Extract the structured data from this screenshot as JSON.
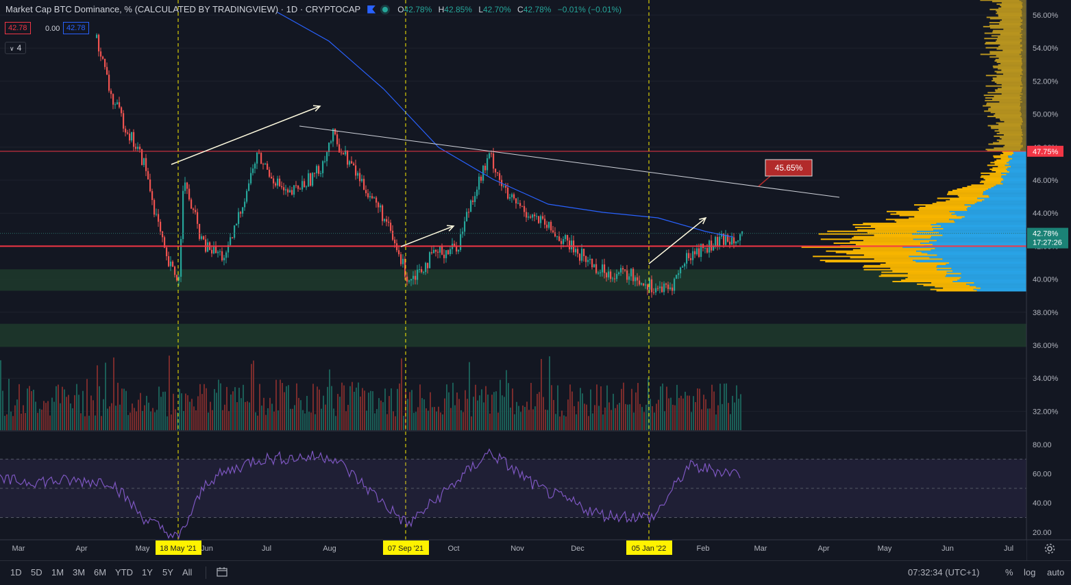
{
  "header": {
    "title": "Market Cap BTC Dominance, % (CALCULATED BY TRADINGVIEW) · 1D · CRYPTOCAP",
    "ohlc": {
      "o_label": "O",
      "o": "42.78%",
      "h_label": "H",
      "h": "42.85%",
      "l_label": "L",
      "l": "42.70%",
      "c_label": "C",
      "c": "42.78%",
      "change": "−0.01% (−0.01%)"
    },
    "box_red": "42.78",
    "box_plain": "0.00",
    "box_blue": "42.78",
    "indicator_count": "4"
  },
  "colors": {
    "bg": "#131722",
    "grid": "#1e222d",
    "up": "#26a69a",
    "down": "#ef5350",
    "ma": "#2962ff",
    "rsi": "#7e57c2",
    "vp_up": "#f7b500",
    "vp_down": "#29a3e6",
    "zone": "#1f3a2b",
    "hline": "#f23645",
    "date_label": "#fff200"
  },
  "price_axis": {
    "ticks": [
      "56.00%",
      "54.00%",
      "52.00%",
      "50.00%",
      "48.00%",
      "46.00%",
      "44.00%",
      "42.00%",
      "40.00%",
      "38.00%",
      "36.00%",
      "34.00%",
      "32.00%"
    ],
    "last_price": "42.78%",
    "countdown": "17:27:26",
    "level_label": "47.75%"
  },
  "rsi_axis": {
    "ticks": [
      "80.00",
      "60.00",
      "40.00",
      "20.00"
    ]
  },
  "time_axis": {
    "months": [
      "Mar",
      "Apr",
      "May",
      "Jun",
      "Jul",
      "Aug",
      "Oct",
      "Nov",
      "Dec",
      "Feb",
      "Mar",
      "Apr",
      "May",
      "Jun",
      "Jul"
    ],
    "markers": [
      "18 May '21",
      "07 Sep '21",
      "05 Jan '22"
    ]
  },
  "annotation": {
    "callout": "45.65%"
  },
  "bottom": {
    "ranges": [
      "1D",
      "5D",
      "1M",
      "3M",
      "6M",
      "YTD",
      "1Y",
      "5Y",
      "All"
    ],
    "time": "07:32:34 (UTC+1)",
    "opts": [
      "%",
      "log",
      "auto"
    ]
  },
  "chart_data": {
    "type": "candlestick",
    "symbol": "CRYPTOCAP",
    "interval": "1D",
    "ylim": [
      30.6,
      57.1
    ],
    "price_path": [
      [
        "2021-04-01",
        58.0
      ],
      [
        "2021-04-15",
        51.0
      ],
      [
        "2021-05-01",
        47.0
      ],
      [
        "2021-05-12",
        41.0
      ],
      [
        "2021-05-18",
        40.0
      ],
      [
        "2021-05-20",
        46.0
      ],
      [
        "2021-05-30",
        42.0
      ],
      [
        "2021-06-10",
        41.3
      ],
      [
        "2021-06-25",
        47.5
      ],
      [
        "2021-07-10",
        45.0
      ],
      [
        "2021-07-25",
        46.5
      ],
      [
        "2021-08-01",
        48.7
      ],
      [
        "2021-08-12",
        46.5
      ],
      [
        "2021-08-25",
        44.0
      ],
      [
        "2021-09-07",
        40.0
      ],
      [
        "2021-09-20",
        41.5
      ],
      [
        "2021-10-01",
        42.0
      ],
      [
        "2021-10-08",
        45.0
      ],
      [
        "2021-10-17",
        47.5
      ],
      [
        "2021-10-25",
        45.0
      ],
      [
        "2021-11-10",
        43.5
      ],
      [
        "2021-11-25",
        42.0
      ],
      [
        "2021-12-10",
        40.5
      ],
      [
        "2021-12-25",
        40.2
      ],
      [
        "2022-01-05",
        39.5
      ],
      [
        "2022-01-12",
        39.3
      ],
      [
        "2022-01-22",
        41.5
      ],
      [
        "2022-02-01",
        42.0
      ],
      [
        "2022-02-10",
        42.5
      ],
      [
        "2022-02-17",
        42.78
      ]
    ],
    "levels": [
      {
        "price": 47.75,
        "type": "horizontal"
      },
      {
        "price": 42.0,
        "type": "horizontal"
      }
    ],
    "zones": [
      {
        "from": 39.3,
        "to": 40.6
      },
      {
        "from": 35.9,
        "to": 37.3
      }
    ],
    "rsi": {
      "ylim": [
        15,
        85
      ],
      "bands": [
        30,
        50,
        70
      ],
      "path": [
        [
          "2021-04-15",
          55
        ],
        [
          "2021-05-01",
          30
        ],
        [
          "2021-05-18",
          15
        ],
        [
          "2021-06-01",
          55
        ],
        [
          "2021-06-25",
          70
        ],
        [
          "2021-08-01",
          72
        ],
        [
          "2021-09-07",
          25
        ],
        [
          "2021-10-17",
          75
        ],
        [
          "2021-11-10",
          50
        ],
        [
          "2021-12-10",
          32
        ],
        [
          "2022-01-05",
          30
        ],
        [
          "2022-01-22",
          65
        ],
        [
          "2022-02-17",
          60
        ]
      ]
    }
  }
}
